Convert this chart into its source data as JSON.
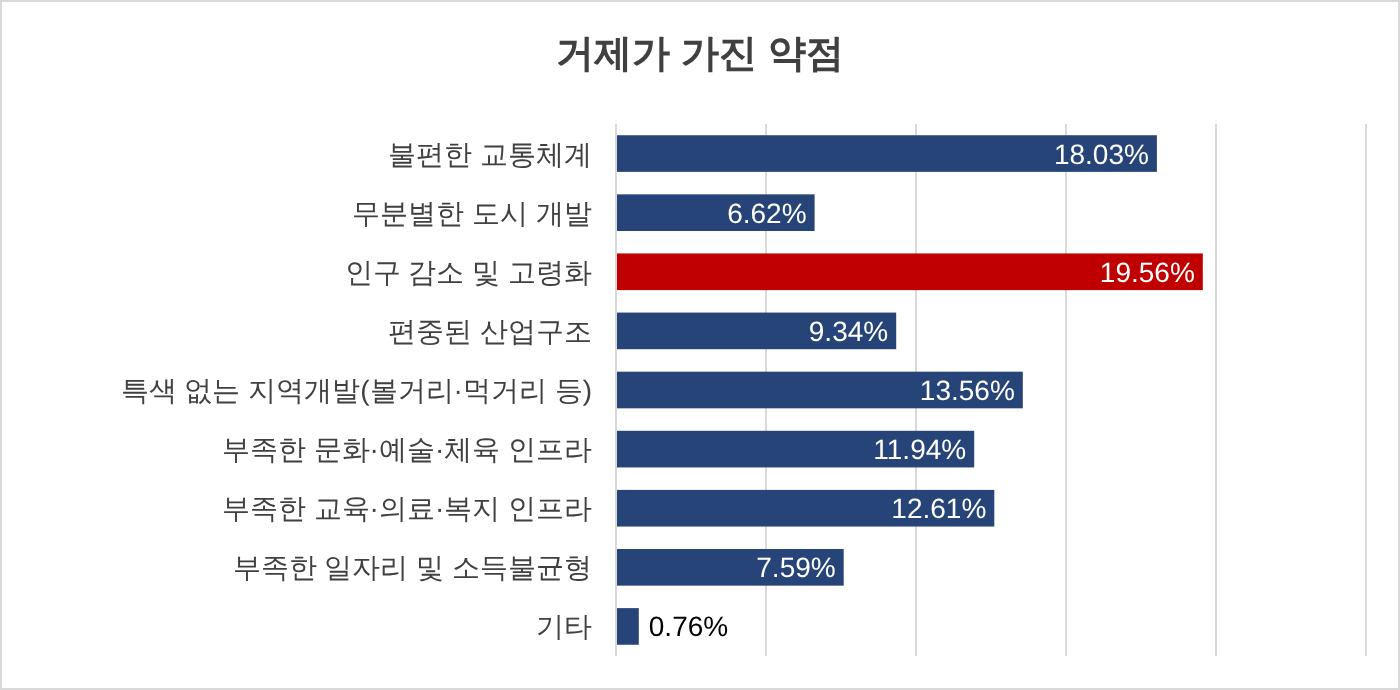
{
  "chart_data": {
    "type": "bar",
    "orientation": "horizontal",
    "title": "거제가 가진 약점",
    "categories": [
      "불편한 교통체계",
      "무분별한 도시 개발",
      "인구 감소 및 고령화",
      "편중된 산업구조",
      "특색 없는 지역개발(볼거리·먹거리 등)",
      "부족한 문화·예술·체육 인프라",
      "부족한 교육·의료·복지 인프라",
      "부족한 일자리 및 소득불균형",
      "기타"
    ],
    "values": [
      18.03,
      6.62,
      19.56,
      9.34,
      13.56,
      11.94,
      12.61,
      7.59,
      0.76
    ],
    "colors": [
      "#264478",
      "#264478",
      "#c00000",
      "#264478",
      "#264478",
      "#264478",
      "#264478",
      "#264478",
      "#264478"
    ],
    "value_labels": [
      "18.03%",
      "6.62%",
      "19.56%",
      "9.34%",
      "13.56%",
      "11.94%",
      "12.61%",
      "7.59%",
      "0.76%"
    ],
    "xlim": [
      0,
      25
    ],
    "xticks": [
      {
        "value": 0,
        "label": null
      },
      {
        "value": 5,
        "label": null
      },
      {
        "value": 10,
        "label": null
      },
      {
        "value": 15,
        "label": null
      },
      {
        "value": 20,
        "label": null
      },
      {
        "value": 25,
        "label": null
      }
    ],
    "grid": "x"
  }
}
